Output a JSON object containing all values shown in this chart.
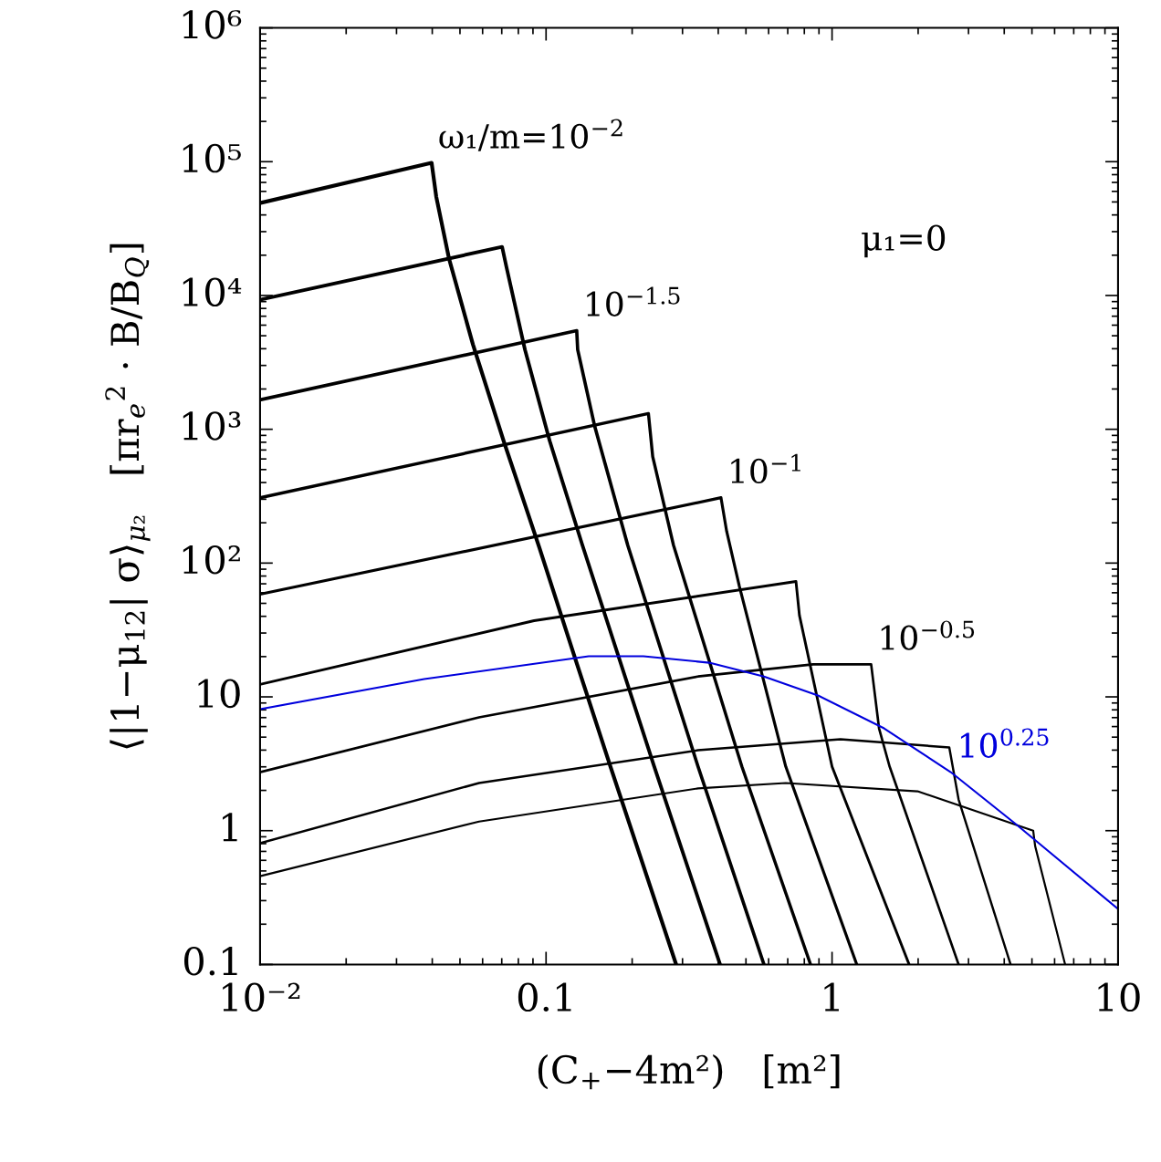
{
  "chart_data": {
    "type": "line",
    "xlabel": "(C$_{+}$−4m²)   [m²]",
    "ylabel": "⟨|1−μ$_{12}$| σ⟩$_{μ₂}$   [πr$_{e}$$^{2}$ · B/B$_{Q}$]",
    "log": "xy",
    "grid": false,
    "legend": false,
    "marker": "none",
    "line_style": "solid",
    "xlim": [
      0.01,
      10
    ],
    "xticks": [
      {
        "value": 0.01,
        "label": "10⁻²"
      },
      0.1,
      1,
      10
    ],
    "ylim": [
      0.1,
      1000000
    ],
    "yticks": [
      0.1,
      1,
      10,
      {
        "value": 100,
        "label": "10²"
      },
      {
        "value": 1000,
        "label": "10³"
      },
      {
        "value": 10000,
        "label": "10⁴"
      },
      {
        "value": 100000,
        "label": "10⁵"
      },
      {
        "value": 1000000,
        "label": "10⁶"
      }
    ],
    "series": [
      {
        "color": "#000000",
        "x": [
          0.01,
          0.0398,
          0.0413,
          0.0458,
          0.0555,
          0.0711,
          0.0948,
          0.126,
          0.168,
          0.285
        ],
        "values": [
          49100,
          98000,
          54800,
          18800,
          4310,
          817,
          130,
          19.8,
          3.01,
          0.1
        ]
      },
      {
        "color": "#000000",
        "x": [
          0.01,
          0.0702,
          0.0728,
          0.0844,
          0.103,
          0.134,
          0.239,
          0.406
        ],
        "values": [
          9300,
          23100,
          16100,
          3930,
          817,
          136,
          3.01,
          0.1
        ]
      },
      {
        "color": "#000000",
        "x": [
          0.01,
          0.128,
          0.129,
          0.148,
          0.193,
          0.34,
          0.578
        ],
        "values": [
          1660,
          5460,
          3930,
          1050,
          136,
          3.01,
          0.1
        ]
      },
      {
        "color": "#000000",
        "x": [
          0.01,
          0.228,
          0.236,
          0.279,
          0.484,
          0.841
        ],
        "values": [
          308,
          1310,
          625,
          136,
          3.01,
          0.1
        ]
      },
      {
        "color": "#000000",
        "x": [
          0.01,
          0.409,
          0.428,
          0.474,
          0.689,
          1.22
        ],
        "values": [
          58.5,
          308,
          173,
          67.3,
          3.01,
          0.1
        ]
      },
      {
        "color": "#000000",
        "x": [
          0.01,
          0.0908,
          0.748,
          0.769,
          1.0,
          1.86
        ],
        "values": [
          12.4,
          37.1,
          72.8,
          40.7,
          3.01,
          0.1
        ]
      },
      {
        "color": "#000000",
        "x": [
          0.01,
          0.0583,
          0.34,
          0.859,
          1.37,
          1.46,
          1.59,
          2.77
        ],
        "values": [
          2.74,
          7.03,
          14.2,
          17.5,
          17.5,
          5.82,
          3.01,
          0.1
        ]
      },
      {
        "color": "#000000",
        "x": [
          0.01,
          0.0583,
          0.34,
          1.07,
          2.57,
          2.77,
          4.21
        ],
        "values": [
          0.805,
          2.27,
          3.99,
          4.82,
          4.19,
          1.71,
          0.1
        ]
      },
      {
        "color": "#000000",
        "x": [
          0.01,
          0.0583,
          0.34,
          0.689,
          1.99,
          5.05,
          5.13,
          6.53
        ],
        "values": [
          0.457,
          1.17,
          2.07,
          2.27,
          1.97,
          1.0,
          0.767,
          0.1
        ]
      },
      {
        "color": "#0000dd",
        "x": [
          0.01,
          0.0375,
          0.141,
          0.219,
          0.372,
          0.578,
          0.897,
          1.52,
          2.6,
          4.39,
          10
        ],
        "values": [
          8.09,
          13.6,
          20.1,
          20.1,
          18.0,
          14.2,
          10.2,
          5.82,
          2.74,
          1.12,
          0.26
        ]
      }
    ],
    "annotations": [
      {
        "text": "ω₁/m=10$^{−2}$",
        "x": 0.0398,
        "y": 98000
      },
      {
        "text": "10$^{−1.5}$",
        "x": 0.128,
        "y": 5460
      },
      {
        "text": "10$^{−1}$",
        "x": 0.409,
        "y": 308
      },
      {
        "text": "10$^{−0.5}$",
        "x": 1.37,
        "y": 17.5
      },
      {
        "text": "10$^{0.25}$",
        "x": 2.6,
        "y": 2.74
      },
      "μ₁=0"
    ]
  }
}
